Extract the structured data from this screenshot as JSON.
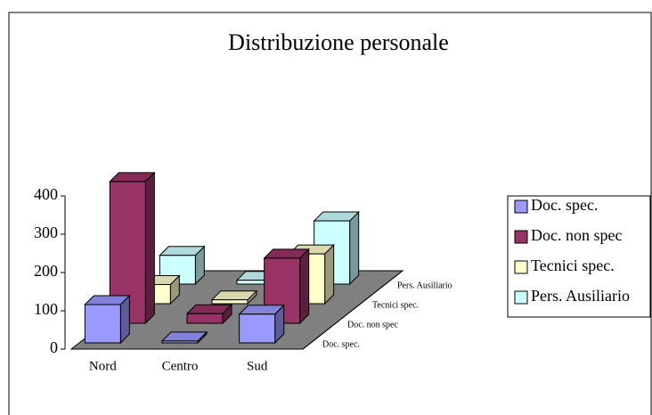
{
  "chart_data": {
    "type": "bar3d",
    "title": "Distribuzione personale",
    "categories": [
      "Nord",
      "Centro",
      "Sud"
    ],
    "series": [
      {
        "name": "Doc. spec.",
        "color": "#9999ff",
        "values": [
          100,
          5,
          75
        ]
      },
      {
        "name": "Doc. non spec",
        "color": "#993366",
        "values": [
          370,
          25,
          170
        ]
      },
      {
        "name": "Tecnici spec.",
        "color": "#ffffcc",
        "values": [
          50,
          10,
          130
        ]
      },
      {
        "name": "Pers. Ausiliario",
        "color": "#ccffff",
        "values": [
          75,
          10,
          165
        ]
      }
    ],
    "ylim": [
      0,
      400
    ],
    "yticks": [
      0,
      100,
      200,
      300,
      400
    ],
    "legend": "right"
  }
}
